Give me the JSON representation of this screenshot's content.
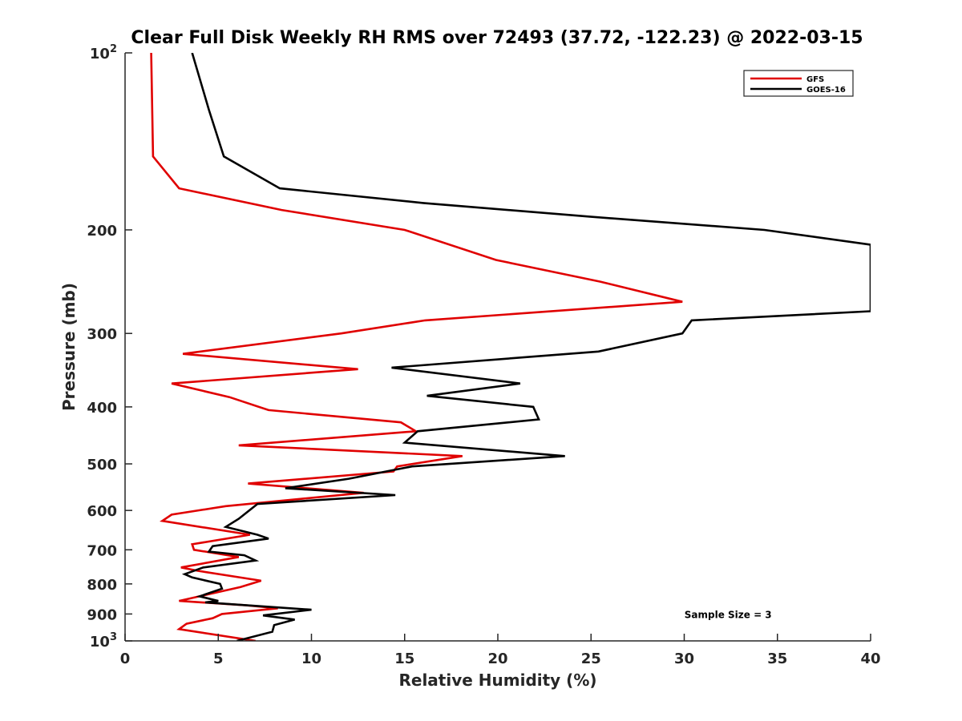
{
  "chart_data": {
    "type": "line",
    "title": "Clear Full Disk Weekly RH RMS over 72493 (37.72, -122.23) @ 2022-03-15",
    "xlabel": "Relative Humidity (%)",
    "ylabel": "Pressure (mb)",
    "xlim": [
      0,
      40
    ],
    "ylim": [
      100,
      1000
    ],
    "y_scale": "log",
    "y_reversed": true,
    "grid": false,
    "legend_position": "top-right",
    "x_ticks": [
      0,
      5,
      10,
      15,
      20,
      25,
      30,
      35,
      40
    ],
    "x_tick_labels": [
      "0",
      "5",
      "10",
      "15",
      "20",
      "25",
      "30",
      "35",
      "40"
    ],
    "y_ticks": [
      100,
      200,
      300,
      400,
      500,
      600,
      700,
      800,
      900,
      1000
    ],
    "y_tick_labels": [
      {
        "base": "10",
        "exp": "2"
      },
      {
        "base": "200"
      },
      {
        "base": "300"
      },
      {
        "base": "400"
      },
      {
        "base": "500"
      },
      {
        "base": "600"
      },
      {
        "base": "700"
      },
      {
        "base": "800"
      },
      {
        "base": "900"
      },
      {
        "base": "10",
        "exp": "3"
      }
    ],
    "series": [
      {
        "name": "GFS",
        "color": "#e00000",
        "points": [
          [
            1.4,
            100
          ],
          [
            1.5,
            150
          ],
          [
            2.9,
            170
          ],
          [
            8.4,
            185
          ],
          [
            15,
            200
          ],
          [
            19.9,
            225
          ],
          [
            25.5,
            245
          ],
          [
            29.9,
            265
          ],
          [
            16.1,
            285
          ],
          [
            11.6,
            300
          ],
          [
            3.1,
            325
          ],
          [
            12.5,
            345
          ],
          [
            2.5,
            365
          ],
          [
            5.6,
            385
          ],
          [
            7.7,
            405
          ],
          [
            14.8,
            425
          ],
          [
            15.6,
            440
          ],
          [
            6.1,
            465
          ],
          [
            18.1,
            485
          ],
          [
            14.6,
            505
          ],
          [
            14.4,
            515
          ],
          [
            6.6,
            540
          ],
          [
            12.8,
            560
          ],
          [
            5.4,
            590
          ],
          [
            2.5,
            610
          ],
          [
            2.0,
            625
          ],
          [
            6.7,
            660
          ],
          [
            3.6,
            685
          ],
          [
            3.7,
            700
          ],
          [
            6.1,
            720
          ],
          [
            3.0,
            750
          ],
          [
            3.9,
            760
          ],
          [
            7.3,
            790
          ],
          [
            6.2,
            810
          ],
          [
            2.9,
            855
          ],
          [
            6.5,
            870
          ],
          [
            8.2,
            880
          ],
          [
            5.2,
            900
          ],
          [
            4.7,
            915
          ],
          [
            3.3,
            935
          ],
          [
            2.9,
            955
          ],
          [
            7.0,
            1000
          ]
        ]
      },
      {
        "name": "GOES-16",
        "color": "#000000",
        "points": [
          [
            3.6,
            100
          ],
          [
            4.5,
            125
          ],
          [
            5.3,
            150
          ],
          [
            8.3,
            170
          ],
          [
            16,
            180
          ],
          [
            25,
            190
          ],
          [
            34.3,
            200
          ],
          [
            40,
            212
          ],
          [
            40,
            275
          ],
          [
            30.4,
            285
          ],
          [
            29.9,
            300
          ],
          [
            25.4,
            322
          ],
          [
            14.3,
            343
          ],
          [
            21.2,
            365
          ],
          [
            16.2,
            383
          ],
          [
            21.9,
            400
          ],
          [
            22.2,
            420
          ],
          [
            15.7,
            440
          ],
          [
            15.0,
            460
          ],
          [
            23.6,
            485
          ],
          [
            15.4,
            505
          ],
          [
            12.0,
            530
          ],
          [
            8.6,
            550
          ],
          [
            14.5,
            565
          ],
          [
            7.1,
            585
          ],
          [
            6.1,
            620
          ],
          [
            5.4,
            640
          ],
          [
            7.1,
            660
          ],
          [
            7.7,
            670
          ],
          [
            4.7,
            690
          ],
          [
            4.5,
            705
          ],
          [
            6.4,
            715
          ],
          [
            7.0,
            730
          ],
          [
            4.2,
            750
          ],
          [
            3.2,
            770
          ],
          [
            3.6,
            780
          ],
          [
            5.1,
            800
          ],
          [
            5.2,
            815
          ],
          [
            4.0,
            840
          ],
          [
            5.0,
            855
          ],
          [
            4.3,
            860
          ],
          [
            10.0,
            885
          ],
          [
            7.4,
            905
          ],
          [
            9.1,
            920
          ],
          [
            8.0,
            940
          ],
          [
            7.9,
            965
          ],
          [
            6.0,
            1000
          ]
        ]
      }
    ],
    "annotations": [
      {
        "text": "Sample Size = 3",
        "x": 35,
        "y": 900
      }
    ]
  }
}
